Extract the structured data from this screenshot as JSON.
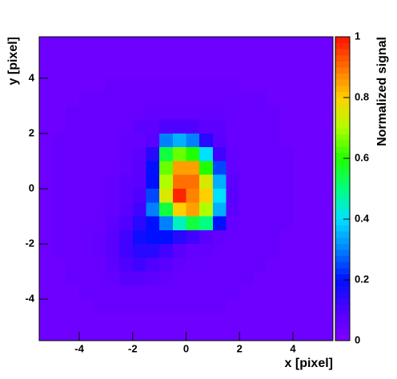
{
  "chart_data": {
    "type": "heatmap",
    "xlabel": "x [pixel]",
    "ylabel": "y [pixel]",
    "zlabel": "Normalized signal",
    "xlim": [
      -5.5,
      5.5
    ],
    "ylim": [
      -5.5,
      5.5
    ],
    "zlim": [
      0,
      1
    ],
    "xticks": [
      -4,
      -2,
      0,
      2,
      4
    ],
    "yticks": [
      -4,
      -2,
      0,
      2,
      4
    ],
    "zticks": [
      0,
      0.2,
      0.4,
      0.6,
      0.8,
      1
    ],
    "colors": [
      "#8000ff",
      "#5000ff",
      "#0010ff",
      "#0080ff",
      "#00e0ff",
      "#00ff80",
      "#20ff00",
      "#b0ff00",
      "#ffd000",
      "#ff7000",
      "#ff1000"
    ],
    "xbins": [
      -5.5,
      -5,
      -4.5,
      -4,
      -3.5,
      -3,
      -2.5,
      -2,
      -1.5,
      -1,
      -0.5,
      0,
      0.5,
      1,
      1.5,
      2,
      2.5,
      3,
      3.5,
      4,
      4.5,
      5,
      5.5
    ],
    "ybins": [
      5.5,
      5,
      4.5,
      4,
      3.5,
      3,
      2.5,
      2,
      1.5,
      1,
      0.5,
      0,
      -0.5,
      -1,
      -1.5,
      -2,
      -2.5,
      -3,
      -3.5,
      -4,
      -4.5,
      -5,
      -5.5
    ],
    "values": [
      [
        0.04,
        0.04,
        0.04,
        0.04,
        0.04,
        0.04,
        0.04,
        0.04,
        0.04,
        0.04,
        0.04,
        0.04,
        0.04,
        0.04,
        0.04,
        0.04,
        0.04,
        0.04,
        0.04,
        0.04,
        0.04,
        0.04
      ],
      [
        0.04,
        0.04,
        0.04,
        0.04,
        0.04,
        0.04,
        0.04,
        0.04,
        0.04,
        0.04,
        0.04,
        0.04,
        0.04,
        0.04,
        0.04,
        0.04,
        0.04,
        0.04,
        0.04,
        0.04,
        0.04,
        0.04
      ],
      [
        0.04,
        0.04,
        0.04,
        0.04,
        0.04,
        0.04,
        0.04,
        0.04,
        0.04,
        0.04,
        0.04,
        0.04,
        0.04,
        0.04,
        0.04,
        0.04,
        0.04,
        0.04,
        0.04,
        0.04,
        0.04,
        0.04
      ],
      [
        0.04,
        0.04,
        0.04,
        0.04,
        0.04,
        0.05,
        0.05,
        0.05,
        0.05,
        0.05,
        0.05,
        0.05,
        0.05,
        0.05,
        0.05,
        0.04,
        0.04,
        0.04,
        0.04,
        0.04,
        0.04,
        0.04
      ],
      [
        0.04,
        0.04,
        0.04,
        0.05,
        0.05,
        0.05,
        0.05,
        0.05,
        0.05,
        0.05,
        0.05,
        0.05,
        0.05,
        0.05,
        0.05,
        0.05,
        0.05,
        0.04,
        0.04,
        0.04,
        0.04,
        0.04
      ],
      [
        0.04,
        0.04,
        0.05,
        0.05,
        0.05,
        0.05,
        0.05,
        0.05,
        0.06,
        0.06,
        0.06,
        0.06,
        0.06,
        0.06,
        0.05,
        0.05,
        0.05,
        0.05,
        0.04,
        0.04,
        0.04,
        0.04
      ],
      [
        0.04,
        0.04,
        0.05,
        0.05,
        0.05,
        0.05,
        0.05,
        0.07,
        0.07,
        0.1,
        0.1,
        0.1,
        0.07,
        0.07,
        0.05,
        0.05,
        0.05,
        0.05,
        0.04,
        0.04,
        0.04,
        0.04
      ],
      [
        0.04,
        0.05,
        0.05,
        0.05,
        0.05,
        0.05,
        0.06,
        0.06,
        0.08,
        0.3,
        0.35,
        0.3,
        0.15,
        0.08,
        0.05,
        0.05,
        0.05,
        0.05,
        0.04,
        0.04,
        0.04,
        0.04
      ],
      [
        0.04,
        0.05,
        0.05,
        0.05,
        0.05,
        0.05,
        0.06,
        0.07,
        0.15,
        0.55,
        0.65,
        0.6,
        0.4,
        0.12,
        0.06,
        0.05,
        0.05,
        0.05,
        0.05,
        0.04,
        0.04,
        0.04
      ],
      [
        0.04,
        0.05,
        0.05,
        0.05,
        0.05,
        0.05,
        0.06,
        0.08,
        0.2,
        0.65,
        0.85,
        0.85,
        0.6,
        0.25,
        0.06,
        0.05,
        0.05,
        0.05,
        0.05,
        0.04,
        0.04,
        0.04
      ],
      [
        0.04,
        0.05,
        0.05,
        0.05,
        0.05,
        0.06,
        0.07,
        0.08,
        0.2,
        0.7,
        0.9,
        0.9,
        0.75,
        0.35,
        0.07,
        0.05,
        0.05,
        0.05,
        0.05,
        0.04,
        0.04,
        0.04
      ],
      [
        0.04,
        0.05,
        0.05,
        0.05,
        0.05,
        0.06,
        0.07,
        0.1,
        0.25,
        0.75,
        0.98,
        0.88,
        0.8,
        0.4,
        0.08,
        0.05,
        0.05,
        0.05,
        0.05,
        0.04,
        0.04,
        0.04
      ],
      [
        0.04,
        0.05,
        0.05,
        0.05,
        0.05,
        0.06,
        0.08,
        0.12,
        0.3,
        0.55,
        0.8,
        0.85,
        0.7,
        0.35,
        0.07,
        0.05,
        0.05,
        0.05,
        0.05,
        0.04,
        0.04,
        0.04
      ],
      [
        0.04,
        0.05,
        0.05,
        0.05,
        0.05,
        0.07,
        0.1,
        0.15,
        0.2,
        0.3,
        0.45,
        0.55,
        0.5,
        0.2,
        0.06,
        0.05,
        0.05,
        0.05,
        0.05,
        0.04,
        0.04,
        0.04
      ],
      [
        0.04,
        0.05,
        0.05,
        0.05,
        0.06,
        0.08,
        0.12,
        0.18,
        0.2,
        0.2,
        0.15,
        0.12,
        0.08,
        0.06,
        0.05,
        0.05,
        0.05,
        0.05,
        0.04,
        0.04,
        0.04,
        0.04
      ],
      [
        0.04,
        0.05,
        0.05,
        0.05,
        0.06,
        0.08,
        0.12,
        0.15,
        0.15,
        0.12,
        0.08,
        0.06,
        0.06,
        0.05,
        0.05,
        0.05,
        0.05,
        0.05,
        0.04,
        0.04,
        0.04,
        0.04
      ],
      [
        0.04,
        0.04,
        0.05,
        0.05,
        0.05,
        0.07,
        0.1,
        0.12,
        0.1,
        0.08,
        0.06,
        0.05,
        0.05,
        0.05,
        0.05,
        0.05,
        0.05,
        0.04,
        0.04,
        0.04,
        0.04,
        0.04
      ],
      [
        0.04,
        0.04,
        0.05,
        0.05,
        0.05,
        0.06,
        0.08,
        0.08,
        0.07,
        0.06,
        0.05,
        0.05,
        0.05,
        0.05,
        0.05,
        0.05,
        0.04,
        0.04,
        0.04,
        0.04,
        0.04,
        0.04
      ],
      [
        0.04,
        0.04,
        0.04,
        0.05,
        0.05,
        0.05,
        0.05,
        0.05,
        0.05,
        0.05,
        0.05,
        0.05,
        0.05,
        0.05,
        0.05,
        0.04,
        0.04,
        0.04,
        0.04,
        0.04,
        0.04,
        0.04
      ],
      [
        0.04,
        0.04,
        0.04,
        0.04,
        0.05,
        0.05,
        0.05,
        0.05,
        0.05,
        0.05,
        0.05,
        0.05,
        0.05,
        0.05,
        0.04,
        0.04,
        0.04,
        0.04,
        0.04,
        0.04,
        0.04,
        0.04
      ],
      [
        0.04,
        0.04,
        0.04,
        0.04,
        0.04,
        0.04,
        0.04,
        0.04,
        0.04,
        0.04,
        0.04,
        0.04,
        0.04,
        0.04,
        0.04,
        0.04,
        0.04,
        0.04,
        0.04,
        0.04,
        0.04,
        0.04
      ],
      [
        0.04,
        0.04,
        0.04,
        0.04,
        0.04,
        0.04,
        0.04,
        0.04,
        0.04,
        0.04,
        0.04,
        0.04,
        0.04,
        0.04,
        0.04,
        0.04,
        0.04,
        0.04,
        0.04,
        0.04,
        0.04,
        0.04
      ]
    ]
  }
}
